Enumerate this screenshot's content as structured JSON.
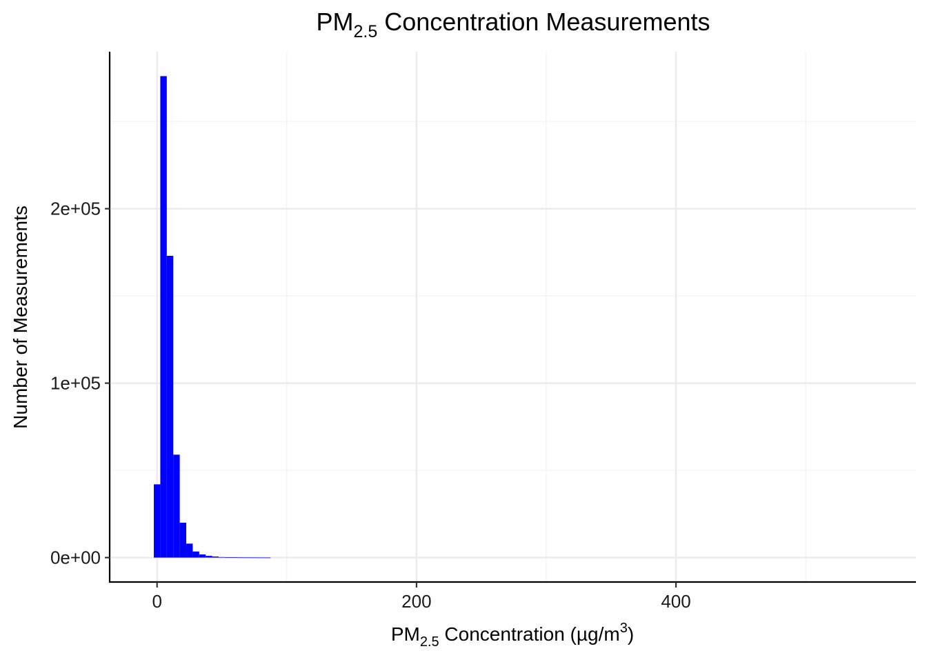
{
  "chart_data": {
    "type": "bar",
    "title": {
      "main": "PM",
      "sub": "2.5",
      "rest": " Concentration Measurements"
    },
    "xlabel": {
      "main": "PM",
      "sub": "2.5",
      "rest": " Concentration (µg/m",
      "sup": "3",
      "end": ")"
    },
    "ylabel": "Number of Measurements",
    "xlim": [
      -36,
      585
    ],
    "ylim": [
      -14000,
      290000
    ],
    "xticks": [
      {
        "value": 0,
        "label": "0"
      },
      {
        "value": 200,
        "label": "200"
      },
      {
        "value": 400,
        "label": "400"
      }
    ],
    "xminor": [
      100,
      300,
      500
    ],
    "yticks": [
      {
        "value": 0,
        "label": "0e+00"
      },
      {
        "value": 100000,
        "label": "1e+05"
      },
      {
        "value": 200000,
        "label": "2e+05"
      }
    ],
    "yminor": [
      50000,
      150000,
      250000
    ],
    "grid": true,
    "bin_width": 5,
    "bins": [
      {
        "x0": -2.5,
        "x1": 2.5,
        "count": 42000
      },
      {
        "x0": 2.5,
        "x1": 7.5,
        "count": 276000
      },
      {
        "x0": 7.5,
        "x1": 12.5,
        "count": 173000
      },
      {
        "x0": 12.5,
        "x1": 17.5,
        "count": 59000
      },
      {
        "x0": 17.5,
        "x1": 22.5,
        "count": 20000
      },
      {
        "x0": 22.5,
        "x1": 27.5,
        "count": 8000
      },
      {
        "x0": 27.5,
        "x1": 32.5,
        "count": 3500
      },
      {
        "x0": 32.5,
        "x1": 37.5,
        "count": 1800
      },
      {
        "x0": 37.5,
        "x1": 42.5,
        "count": 1000
      },
      {
        "x0": 42.5,
        "x1": 47.5,
        "count": 600
      },
      {
        "x0": 47.5,
        "x1": 52.5,
        "count": 300
      },
      {
        "x0": 52.5,
        "x1": 57.5,
        "count": 200
      },
      {
        "x0": 57.5,
        "x1": 62.5,
        "count": 150
      },
      {
        "x0": 62.5,
        "x1": 67.5,
        "count": 100
      },
      {
        "x0": 67.5,
        "x1": 72.5,
        "count": 80
      },
      {
        "x0": 72.5,
        "x1": 77.5,
        "count": 60
      },
      {
        "x0": 77.5,
        "x1": 82.5,
        "count": 40
      },
      {
        "x0": 82.5,
        "x1": 87.5,
        "count": 30
      }
    ],
    "bar_color": "#0000ff"
  }
}
